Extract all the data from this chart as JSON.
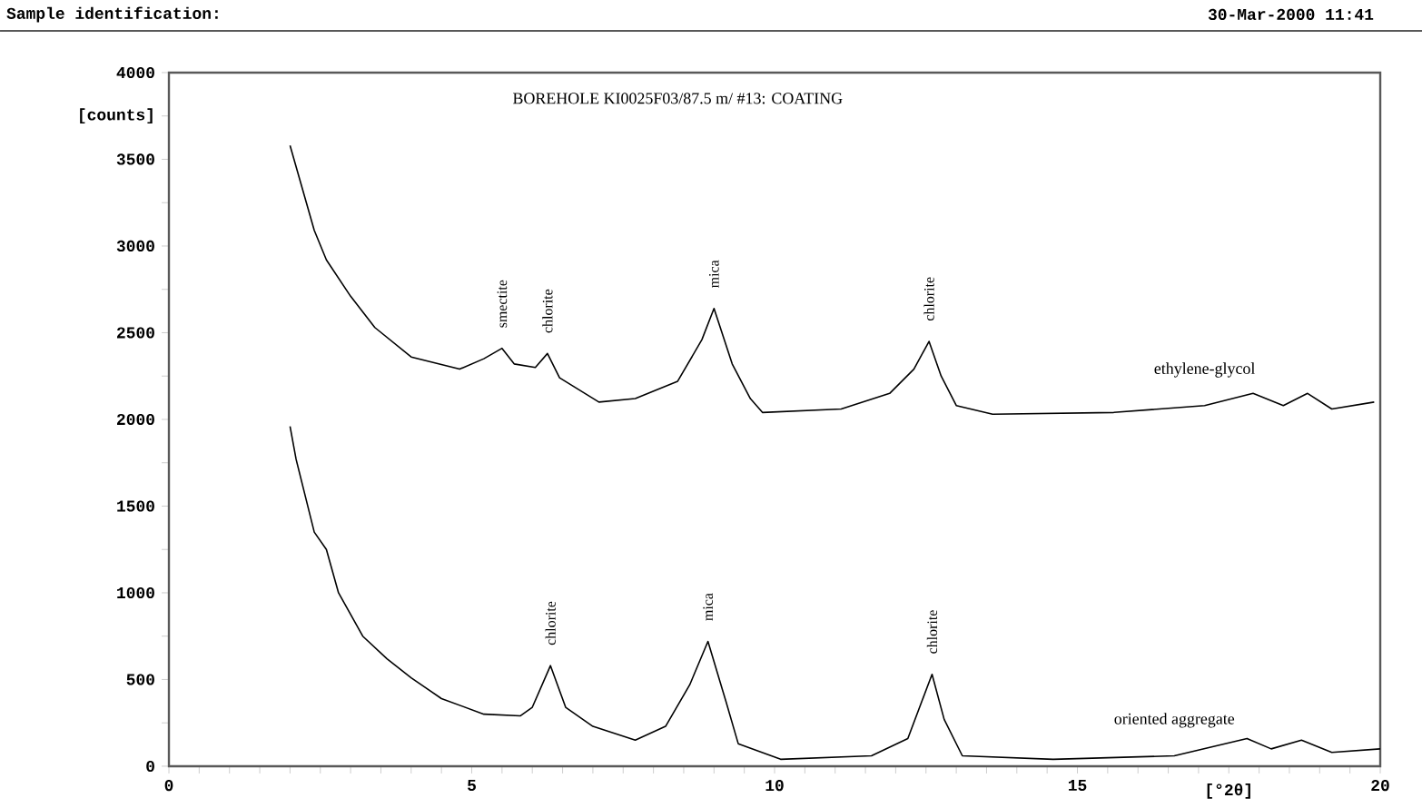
{
  "chart_data": {
    "type": "line",
    "title": "BOREHOLE KI0025F03/87.5 m/ #13: COATING",
    "xlabel": "[°2θ]",
    "xlim": [
      0,
      20
    ],
    "ylim": [
      0,
      4000
    ],
    "xticks": [
      0,
      {
        "value": 0.5,
        "label": null
      },
      {
        "value": 1,
        "label": null
      },
      {
        "value": 1.5,
        "label": null
      },
      {
        "value": 2,
        "label": null
      },
      {
        "value": 2.5,
        "label": null
      },
      {
        "value": 3,
        "label": null
      },
      {
        "value": 3.5,
        "label": null
      },
      {
        "value": 4,
        "label": null
      },
      {
        "value": 4.5,
        "label": null
      },
      5,
      {
        "value": 5.5,
        "label": null
      },
      {
        "value": 6,
        "label": null
      },
      {
        "value": 6.5,
        "label": null
      },
      {
        "value": 7,
        "label": null
      },
      {
        "value": 7.5,
        "label": null
      },
      {
        "value": 8,
        "label": null
      },
      {
        "value": 8.5,
        "label": null
      },
      {
        "value": 9,
        "label": null
      },
      {
        "value": 9.5,
        "label": null
      },
      10,
      {
        "value": 10.5,
        "label": null
      },
      {
        "value": 11,
        "label": null
      },
      {
        "value": 11.5,
        "label": null
      },
      {
        "value": 12,
        "label": null
      },
      {
        "value": 12.5,
        "label": null
      },
      {
        "value": 13,
        "label": null
      },
      {
        "value": 13.5,
        "label": null
      },
      {
        "value": 14,
        "label": null
      },
      {
        "value": 14.5,
        "label": null
      },
      15,
      {
        "value": 15.5,
        "label": null
      },
      {
        "value": 16,
        "label": null
      },
      {
        "value": 16.5,
        "label": null
      },
      {
        "value": 17,
        "label": null
      },
      {
        "value": 17.5,
        "label": null
      },
      {
        "value": 18,
        "label": null
      },
      {
        "value": 18.5,
        "label": null
      },
      {
        "value": 19,
        "label": null
      },
      {
        "value": 19.5,
        "label": null
      },
      20
    ],
    "yticks": [
      0,
      {
        "value": 250,
        "label": null
      },
      500,
      {
        "value": 750,
        "label": null
      },
      1000,
      {
        "value": 1250,
        "label": null
      },
      1500,
      {
        "value": 1750,
        "label": null
      },
      2000,
      {
        "value": 2250,
        "label": null
      },
      2500,
      {
        "value": 2750,
        "label": null
      },
      3000,
      {
        "value": 3250,
        "label": null
      },
      3500,
      {
        "value": 3750,
        "label": "[counts]"
      },
      4000
    ],
    "grid": false,
    "legend": false,
    "marker": "none",
    "line_style": "solid",
    "series": [
      {
        "name": "ethylene-glycol",
        "color": "#000000",
        "x": [
          2.0,
          2.4,
          2.6,
          3.0,
          3.4,
          4.0,
          4.8,
          5.2,
          5.5,
          5.7,
          6.05,
          6.25,
          6.45,
          7.1,
          7.7,
          8.4,
          8.8,
          9.0,
          9.3,
          9.6,
          9.8,
          11.1,
          11.9,
          12.3,
          12.55,
          12.75,
          13.0,
          13.6,
          15.6,
          17.1,
          17.9,
          18.4,
          18.8,
          19.2,
          19.9
        ],
        "values": [
          3580,
          3090,
          2920,
          2710,
          2530,
          2360,
          2290,
          2350,
          2410,
          2320,
          2300,
          2380,
          2240,
          2100,
          2120,
          2220,
          2460,
          2640,
          2320,
          2120,
          2040,
          2060,
          2150,
          2290,
          2450,
          2250,
          2080,
          2030,
          2040,
          2080,
          2150,
          2080,
          2150,
          2060,
          2100
        ]
      },
      {
        "name": "oriented aggregate",
        "color": "#000000",
        "x": [
          2.0,
          2.1,
          2.4,
          2.6,
          2.8,
          3.2,
          3.6,
          4.0,
          4.5,
          5.2,
          5.8,
          6.0,
          6.3,
          6.55,
          7.0,
          7.7,
          8.2,
          8.6,
          8.9,
          9.2,
          9.4,
          10.1,
          11.6,
          12.2,
          12.6,
          12.8,
          13.1,
          14.6,
          16.6,
          17.8,
          18.2,
          18.7,
          19.2,
          20.0
        ],
        "values": [
          1960,
          1770,
          1350,
          1250,
          1000,
          750,
          620,
          510,
          390,
          300,
          290,
          340,
          580,
          340,
          230,
          150,
          230,
          470,
          720,
          370,
          130,
          40,
          60,
          160,
          530,
          270,
          60,
          40,
          60,
          160,
          100,
          150,
          80,
          100
        ]
      }
    ],
    "annotations": [
      "Sample identification:",
      "30-Mar-2000 11:41",
      {
        "text": "smectite",
        "x": 5.5,
        "y": 2410
      },
      {
        "text": "chlorite",
        "x": 6.25,
        "y": 2380
      },
      {
        "text": "mica",
        "x": 9.0,
        "y": 2640
      },
      {
        "text": "chlorite",
        "x": 12.55,
        "y": 2450
      },
      {
        "text": "chlorite",
        "x": 6.3,
        "y": 580
      },
      {
        "text": "mica",
        "x": 8.9,
        "y": 720
      },
      {
        "text": "chlorite",
        "x": 12.6,
        "y": 530
      }
    ]
  }
}
